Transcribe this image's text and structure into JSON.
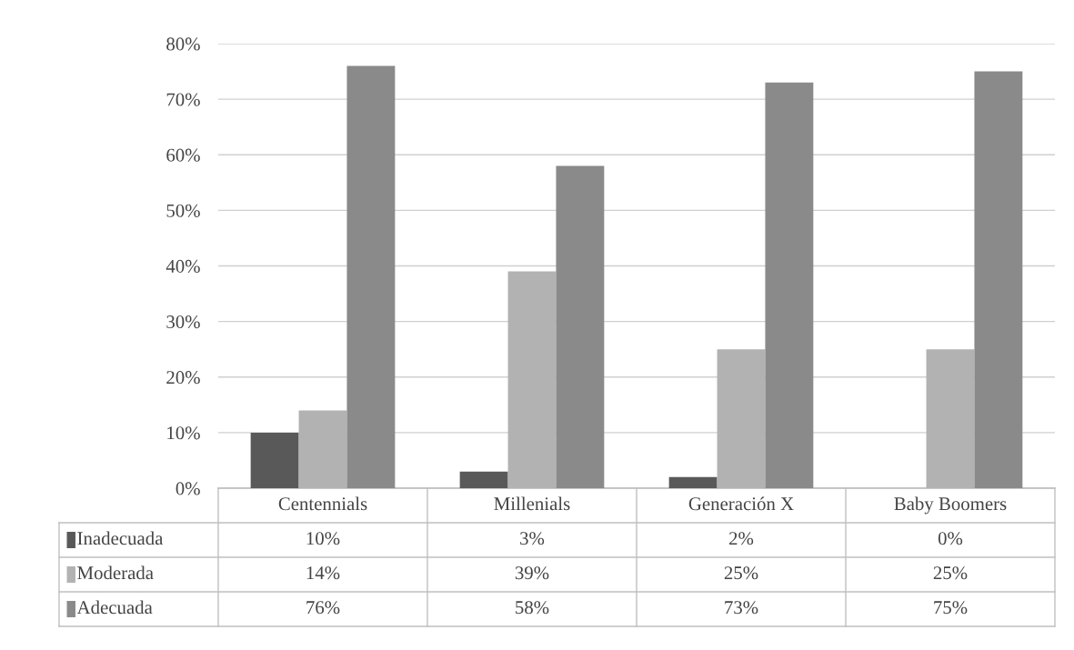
{
  "chart_data": {
    "type": "bar",
    "categories": [
      "Centennials",
      "Millenials",
      "Generación X",
      "Baby Boomers"
    ],
    "series": [
      {
        "name": "Inadecuada",
        "color": "#595959",
        "values": [
          10,
          3,
          2,
          0
        ],
        "value_labels": [
          "10%",
          "3%",
          "2%",
          "0%"
        ]
      },
      {
        "name": "Moderada",
        "color": "#b2b2b2",
        "values": [
          14,
          39,
          25,
          25
        ],
        "value_labels": [
          "14%",
          "39%",
          "25%",
          "25%"
        ]
      },
      {
        "name": "Adecuada",
        "color": "#8a8a8a",
        "values": [
          76,
          58,
          73,
          75
        ],
        "value_labels": [
          "76%",
          "58%",
          "73%",
          "75%"
        ]
      }
    ],
    "ylim": [
      0,
      80
    ],
    "yticks": [
      {
        "value": 0,
        "label": "0%"
      },
      {
        "value": 10,
        "label": "10%"
      },
      {
        "value": 20,
        "label": "20%"
      },
      {
        "value": 30,
        "label": "30%"
      },
      {
        "value": 40,
        "label": "40%"
      },
      {
        "value": 50,
        "label": "50%"
      },
      {
        "value": 60,
        "label": "60%"
      },
      {
        "value": 70,
        "label": "70%"
      },
      {
        "value": 80,
        "label": "80%"
      }
    ],
    "grid": "y",
    "legend": "bottom left"
  }
}
